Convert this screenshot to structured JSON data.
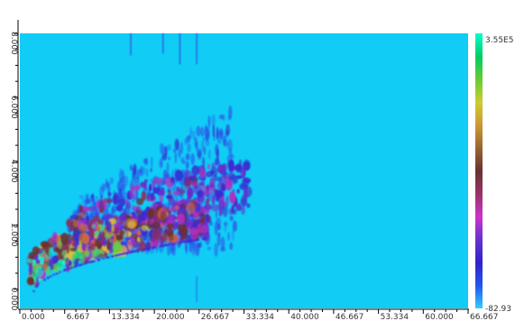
{
  "chart_data": {
    "type": "heatmap",
    "title": "",
    "xlabel": "",
    "ylabel": "",
    "xlim": [
      0,
      66.667
    ],
    "ylim": [
      -0.6,
      8.0
    ],
    "x_ticks": [
      "0.000",
      "6.667",
      "13.334",
      "20.000",
      "26.667",
      "33.334",
      "40.000",
      "46.667",
      "53.334",
      "60.000",
      "66.667"
    ],
    "x_tick_values": [
      0,
      6.667,
      13.334,
      20.0,
      26.667,
      33.334,
      40.0,
      46.667,
      53.334,
      60.0,
      66.667
    ],
    "y_ticks": [
      "0.000",
      "2.000",
      "4.000",
      "6.000",
      "8.000"
    ],
    "y_tick_values": [
      0,
      2,
      4,
      6,
      8
    ],
    "colorbar": {
      "max_label": "3.55E5",
      "min_label": "-82.93",
      "colors": [
        "#00ffcc",
        "#00cc66",
        "#66cc33",
        "#cccc33",
        "#cc9933",
        "#996633",
        "#663333",
        "#993366",
        "#cc33cc",
        "#6633cc",
        "#3322cc",
        "#2255ee",
        "#33ccff"
      ]
    },
    "background_color": "#11ccf5",
    "features": [
      {
        "name": "main-band",
        "x_range": [
          1.5,
          28
        ],
        "y_start": 0.15,
        "y_end": 2.0,
        "intensity": "high"
      },
      {
        "name": "secondary-band",
        "x_range": [
          6,
          34
        ],
        "y_start": 1.0,
        "y_end": 3.3,
        "intensity": "medium"
      },
      {
        "name": "upper-fan",
        "x_range": [
          8,
          32
        ],
        "y_start": 2.0,
        "y_end": 5.8,
        "intensity": "low"
      },
      {
        "name": "vertical-streaks",
        "x_values": [
          16.5,
          21.3,
          23.8,
          26.3
        ],
        "intensity": "low"
      }
    ]
  }
}
